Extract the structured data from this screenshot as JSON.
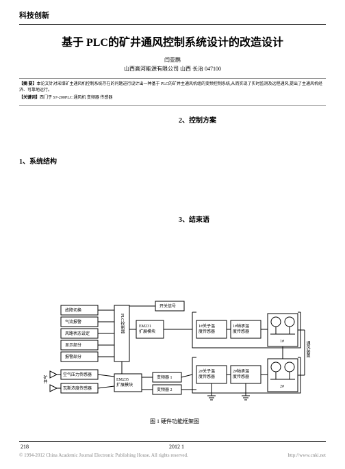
{
  "header": {
    "category": "科技创新",
    "title": "基于 PLC的矿井通风控制系统设计的改造设计",
    "author": "闫亚鹏",
    "affiliation": "山西高河能源有限公司  山西  长治  047100"
  },
  "abstract": {
    "abs_label": "【摘 要】",
    "abs_text": "本论文针对采煤矿主通风机控制系统存在的问题进行设计出一种基于 PLC的矿井主通风机组的变频控制系统,从而实现了实时监测及远程通风,提出了主通风机经济、可靠地运行。",
    "kw_label": "【关键词】",
    "kw_text": "西门子 S7-200PLC  通风机  变频器  传感器"
  },
  "sections": {
    "s1": "1、系统结构",
    "s2": "2、控制方案",
    "s3": "3、结束语"
  },
  "figure": {
    "caption": "图 1 硬件功能框架图",
    "left_boxes": [
      "故障切换",
      "气流报警",
      "风路状态设定",
      "显示部分",
      "报警部分"
    ],
    "bottom_inputs": [
      "空气压力传感器",
      "瓦斯浓度传感器"
    ],
    "bottom_inputs_left": "矿井",
    "plc_label": "PLC控制器",
    "em231": "EM231扩展模块",
    "em235": "EM235扩展模块",
    "switch_signal": "开关信号",
    "vfd1": "变频器 1",
    "vfd2": "变频器 2",
    "sensor_1a": "1#关子温度传感器",
    "sensor_1b": "1#轴承温度传感器",
    "sensor_2a": "2#关子温度传感器",
    "sensor_2b": "2#轴承温度传感器",
    "fan1": "1#",
    "fan2": "2#",
    "right_label": "通风装置",
    "colors": {
      "stroke": "#000000",
      "fill": "#ffffff"
    }
  },
  "footer": {
    "page_left": "218",
    "page_center": "2012  1",
    "copyright": "© 1994-2012 China Academic Journal Electronic Publishing House. All rights reserved.",
    "url": "http://www.cnki.net"
  }
}
